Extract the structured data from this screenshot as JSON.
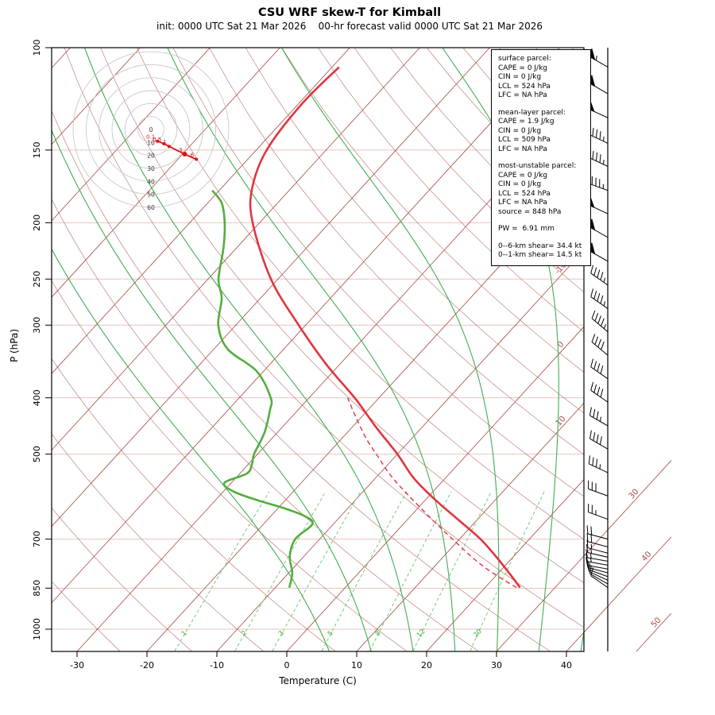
{
  "title": "CSU WRF skew-T for Kimball",
  "subtitle": "init: 0000 UTC Sat 21 Mar 2026    00-hr forecast valid 0000 UTC Sat 21 Mar 2026",
  "axes": {
    "xlabel": "Temperature (C)",
    "ylabel": "P (hPa)",
    "pressure_ticks": [
      100,
      150,
      200,
      250,
      300,
      400,
      500,
      700,
      850,
      1000
    ],
    "temp_ticks": [
      -30,
      -20,
      -10,
      0,
      10,
      20,
      30,
      40
    ],
    "skew_labels_inner": [
      -10,
      0,
      10
    ],
    "skew_labels_outer": [
      30,
      40,
      50
    ],
    "mixing_ratio_labels": [
      1,
      2,
      3,
      5,
      8,
      12,
      20
    ],
    "moist_adiabat_starts": [
      6,
      12,
      18,
      24,
      30,
      36,
      42
    ],
    "isotherm_range": [
      -120,
      50
    ],
    "dry_adiabat_range": [
      -40,
      180
    ]
  },
  "colors": {
    "temperature": "#e0353f",
    "dewpoint": "#53ad3f",
    "parcel": "#e0353f",
    "isotherm": "#a5483e",
    "dry_adiabat": "#a5483e",
    "moist_adiabat": "#3fae52",
    "mixing_ratio": "#79c879",
    "mixing_label": "#3cb043",
    "pressure_grid": "#e8c4c0",
    "barb": "#000000",
    "hodo_ring": "#c8c8c8",
    "hodo_trace": "#e0101a"
  },
  "info_box": {
    "sections": [
      {
        "heading": "surface parcel:",
        "lines": [
          "CAPE = 0 J/kg",
          "CIN = 0 J/kg",
          "LCL = 524 hPa",
          "LFC = NA hPa"
        ]
      },
      {
        "heading": "mean-layer parcel:",
        "lines": [
          "CAPE = 1.9 J/kg",
          "CIN = 0 J/kg",
          "LCL = 509 hPa",
          "LFC = NA hPa"
        ]
      },
      {
        "heading": "most-unstable parcel:",
        "lines": [
          "CAPE = 0 J/kg",
          "CIN = 0 J/kg",
          "LCL = 524 hPa",
          "LFC = NA hPa",
          "source = 848 hPa"
        ]
      },
      {
        "heading": "",
        "lines": [
          "PW =  6.91 mm"
        ]
      },
      {
        "heading": "",
        "lines": [
          "0--6-km shear= 34.4 kt",
          "0--1-km shear= 14.5 kt"
        ]
      }
    ]
  },
  "hodograph": {
    "ring_labels": [
      "0",
      "10",
      "20",
      "30",
      "40",
      "50",
      "60"
    ],
    "ring_step_kt": 10,
    "trace": [
      {
        "u": 5,
        "v": -9,
        "label": "0.1"
      },
      {
        "u": 10,
        "v": -11,
        "label": "0.5"
      },
      {
        "u": 14,
        "v": -13,
        "label": "1"
      },
      {
        "u": 26,
        "v": -19,
        "label": "3"
      },
      {
        "u": 35,
        "v": -23,
        "label": "6"
      }
    ]
  },
  "chart_data": {
    "type": "line",
    "title": "CSU WRF skew-T for Kimball",
    "xlabel": "Temperature (C)",
    "ylabel": "P (hPa)",
    "y_scale": "log",
    "x_range": [
      -30,
      40
    ],
    "y_range": [
      100,
      1090
    ],
    "series": [
      {
        "name": "temperature",
        "pressure": [
          848,
          800,
          750,
          700,
          650,
          600,
          550,
          500,
          450,
          400,
          350,
          300,
          250,
          200,
          175,
          150,
          125,
          108
        ],
        "values": [
          25,
          21.5,
          17.5,
          13,
          7.5,
          1.5,
          -4.5,
          -10,
          -16.5,
          -23.5,
          -32,
          -41,
          -51,
          -61,
          -65.5,
          -68.5,
          -69.5,
          -69
        ]
      },
      {
        "name": "dewpoint",
        "pressure": [
          848,
          800,
          750,
          700,
          660,
          640,
          620,
          600,
          580,
          560,
          540,
          520,
          500,
          460,
          420,
          400,
          360,
          330,
          300,
          270,
          250,
          220,
          200,
          185,
          176
        ],
        "values": [
          -8,
          -9.5,
          -12,
          -13.5,
          -13,
          -15,
          -19,
          -24,
          -28.5,
          -31,
          -29,
          -29.5,
          -30.5,
          -31.8,
          -34,
          -35.5,
          -41,
          -48,
          -52.5,
          -55.5,
          -58.5,
          -62,
          -65,
          -68,
          -71
        ]
      },
      {
        "name": "parcel_trace",
        "style": "dashed",
        "pressure": [
          848,
          780,
          700,
          620,
          550,
          509,
          470,
          430,
          400
        ],
        "values": [
          24.5,
          17,
          9,
          0.5,
          -7.5,
          -12,
          -16.5,
          -21,
          -24.5
        ]
      }
    ],
    "wind_barbs": [
      {
        "p": 108,
        "spd": 55,
        "dir": 300
      },
      {
        "p": 120,
        "spd": 50,
        "dir": 300
      },
      {
        "p": 132,
        "spd": 50,
        "dir": 295
      },
      {
        "p": 146,
        "spd": 45,
        "dir": 295
      },
      {
        "p": 160,
        "spd": 45,
        "dir": 295
      },
      {
        "p": 176,
        "spd": 45,
        "dir": 290
      },
      {
        "p": 193,
        "spd": 50,
        "dir": 295
      },
      {
        "p": 212,
        "spd": 50,
        "dir": 300
      },
      {
        "p": 233,
        "spd": 50,
        "dir": 300
      },
      {
        "p": 256,
        "spd": 45,
        "dir": 305
      },
      {
        "p": 281,
        "spd": 45,
        "dir": 305
      },
      {
        "p": 308,
        "spd": 45,
        "dir": 310
      },
      {
        "p": 338,
        "spd": 40,
        "dir": 310
      },
      {
        "p": 371,
        "spd": 40,
        "dir": 305
      },
      {
        "p": 407,
        "spd": 40,
        "dir": 305
      },
      {
        "p": 447,
        "spd": 35,
        "dir": 300
      },
      {
        "p": 490,
        "spd": 40,
        "dir": 300
      },
      {
        "p": 538,
        "spd": 35,
        "dir": 295
      },
      {
        "p": 590,
        "spd": 30,
        "dir": 290
      },
      {
        "p": 647,
        "spd": 25,
        "dir": 290
      },
      {
        "p": 700,
        "spd": 20,
        "dir": 285
      },
      {
        "p": 722,
        "spd": 20,
        "dir": 285
      },
      {
        "p": 740,
        "spd": 15,
        "dir": 285
      },
      {
        "p": 752,
        "spd": 15,
        "dir": 283
      },
      {
        "p": 764,
        "spd": 15,
        "dir": 280
      },
      {
        "p": 776,
        "spd": 15,
        "dir": 280
      },
      {
        "p": 788,
        "spd": 10,
        "dir": 280
      },
      {
        "p": 800,
        "spd": 10,
        "dir": 285
      },
      {
        "p": 812,
        "spd": 10,
        "dir": 290
      },
      {
        "p": 824,
        "spd": 10,
        "dir": 295
      },
      {
        "p": 836,
        "spd": 10,
        "dir": 300
      },
      {
        "p": 848,
        "spd": 10,
        "dir": 305
      }
    ]
  }
}
